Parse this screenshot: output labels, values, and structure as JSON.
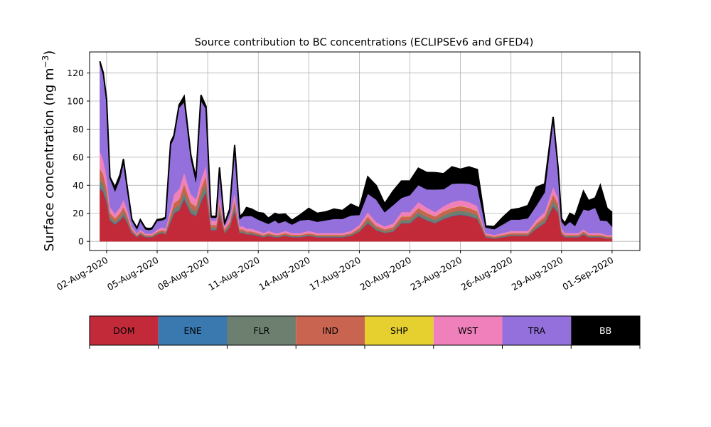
{
  "chart_data": {
    "type": "area",
    "stacked": true,
    "title": "Source contribution to BC concentrations (ECLIPSEv6 and GFED4)",
    "ylabel": "Surface concentration (ng m",
    "ylabel_unit_superscript": "−3",
    "ylabel_close": ")",
    "ylim": [
      -6.5,
      135
    ],
    "y_ticks": [
      0,
      20,
      40,
      60,
      80,
      100,
      120
    ],
    "x_ticks": [
      "02-Aug-2020",
      "05-Aug-2020",
      "08-Aug-2020",
      "11-Aug-2020",
      "14-Aug-2020",
      "17-Aug-2020",
      "20-Aug-2020",
      "23-Aug-2020",
      "26-Aug-2020",
      "29-Aug-2020",
      "01-Sep-2020"
    ],
    "x_tick_days": [
      2,
      5,
      8,
      11,
      14,
      17,
      20,
      23,
      26,
      29,
      32
    ],
    "xlim_days": [
      0.99,
      33.65
    ],
    "grid": true,
    "x": [
      1.6,
      1.8,
      2.0,
      2.2,
      2.5,
      2.8,
      3.0,
      3.2,
      3.5,
      3.8,
      4.0,
      4.3,
      4.5,
      4.7,
      5.0,
      5.3,
      5.5,
      5.8,
      6.0,
      6.3,
      6.6,
      7.0,
      7.3,
      7.6,
      7.9,
      8.2,
      8.5,
      8.7,
      9.0,
      9.3,
      9.6,
      9.9,
      10.1,
      10.3,
      10.6,
      11.0,
      11.3,
      11.6,
      12.0,
      12.2,
      12.6,
      13.0,
      13.5,
      14.0,
      14.5,
      15.0,
      15.5,
      16.0,
      16.5,
      17.0,
      17.5,
      18.0,
      18.5,
      19.0,
      19.5,
      20.0,
      20.5,
      21.0,
      21.5,
      22.0,
      22.5,
      23.0,
      23.5,
      24.0,
      24.5,
      25.0,
      25.5,
      26.0,
      26.5,
      27.0,
      27.5,
      28.0,
      28.5,
      28.8,
      29.0,
      29.2,
      29.5,
      29.8,
      30.0,
      30.3,
      30.6,
      31.0,
      31.3,
      31.7,
      32.0
    ],
    "series": [
      {
        "name": "DOM",
        "color": "#c22a3a",
        "values": [
          38,
          35,
          28,
          15,
          12,
          15,
          18,
          14,
          6,
          3,
          5,
          3,
          3,
          3,
          5,
          6,
          5,
          14,
          20,
          22,
          30,
          20,
          18,
          28,
          35,
          8,
          8,
          20,
          6,
          10,
          22,
          6,
          6,
          5,
          5,
          4,
          3,
          4,
          3,
          3,
          4,
          3,
          3,
          4,
          3,
          3,
          3,
          3,
          4,
          7,
          13,
          8,
          6,
          7,
          13,
          13,
          18,
          15,
          13,
          16,
          18,
          19,
          18,
          16,
          3,
          2,
          3,
          4,
          4,
          4,
          9,
          13,
          25,
          20,
          5,
          3,
          3,
          3,
          3,
          5,
          3,
          3,
          3,
          2,
          2
        ]
      },
      {
        "name": "ENE",
        "color": "#3a78b0",
        "values": [
          1,
          1,
          1,
          0.5,
          0.5,
          0.5,
          0.5,
          0.5,
          0.2,
          0.2,
          0.2,
          0.2,
          0.2,
          0.2,
          0.2,
          0.2,
          0.2,
          0.5,
          0.5,
          0.5,
          1,
          0.5,
          0.5,
          1,
          1,
          0.3,
          0.3,
          0.5,
          0.2,
          0.3,
          0.5,
          0.2,
          0.2,
          0.2,
          0.2,
          0.2,
          0.2,
          0.2,
          0.2,
          0.2,
          0.2,
          0.2,
          0.2,
          0.2,
          0.2,
          0.2,
          0.2,
          0.2,
          0.2,
          0.2,
          0.3,
          0.2,
          0.2,
          0.2,
          0.3,
          0.3,
          0.4,
          0.4,
          0.3,
          0.4,
          0.4,
          0.4,
          0.4,
          0.4,
          0.2,
          0.2,
          0.2,
          0.2,
          0.2,
          0.2,
          0.3,
          0.3,
          0.5,
          0.4,
          0.2,
          0.2,
          0.2,
          0.2,
          0.2,
          0.2,
          0.2,
          0.2,
          0.2,
          0.2,
          0.2
        ]
      },
      {
        "name": "FLR",
        "color": "#6d8070",
        "values": [
          5,
          5,
          4,
          2,
          1.5,
          2,
          2.5,
          2,
          1,
          0.5,
          0.7,
          0.5,
          0.5,
          0.5,
          0.7,
          0.8,
          0.8,
          2,
          3,
          3,
          4,
          3,
          3,
          4,
          5,
          1.5,
          1.5,
          3,
          1,
          1.5,
          3,
          1,
          1,
          0.8,
          0.8,
          0.7,
          0.6,
          0.7,
          0.6,
          0.6,
          0.7,
          0.6,
          0.6,
          0.7,
          0.6,
          0.6,
          0.6,
          0.6,
          0.7,
          1,
          2,
          1.2,
          1,
          1.2,
          2,
          2,
          2.5,
          2.2,
          2,
          2.3,
          2.5,
          2.6,
          2.5,
          2.3,
          0.6,
          0.5,
          0.6,
          0.7,
          0.7,
          0.7,
          1.5,
          2,
          3.5,
          3,
          1,
          0.6,
          0.6,
          0.6,
          0.6,
          0.8,
          0.6,
          0.6,
          0.6,
          0.5,
          0.5
        ]
      },
      {
        "name": "IND",
        "color": "#c86450",
        "values": [
          8,
          7,
          5,
          3,
          2.5,
          3,
          3.5,
          3,
          1.5,
          0.8,
          1,
          0.8,
          0.8,
          0.8,
          1,
          1.2,
          1.2,
          3,
          4,
          4.5,
          6,
          4,
          3.5,
          5,
          6,
          2,
          2,
          4,
          1.5,
          2,
          4,
          1.5,
          1.5,
          1.2,
          1.2,
          1,
          0.9,
          1,
          0.9,
          0.9,
          1,
          0.9,
          0.9,
          1,
          0.9,
          0.9,
          0.9,
          0.9,
          1,
          1.5,
          2.5,
          1.8,
          1.5,
          1.8,
          2.5,
          2.5,
          3,
          2.8,
          2.5,
          2.8,
          3,
          3.2,
          3,
          2.8,
          0.9,
          0.8,
          0.9,
          1,
          1,
          1,
          2,
          2.5,
          4.5,
          3.5,
          1.2,
          0.9,
          0.9,
          0.9,
          0.9,
          1.2,
          0.9,
          0.9,
          0.9,
          0.8,
          0.8
        ]
      },
      {
        "name": "SHP",
        "color": "#e6d030",
        "values": [
          0.3,
          0.3,
          0.3,
          0.2,
          0.2,
          0.2,
          0.2,
          0.2,
          0.1,
          0.1,
          0.1,
          0.1,
          0.1,
          0.1,
          0.1,
          0.1,
          0.1,
          0.2,
          0.2,
          0.2,
          0.3,
          0.2,
          0.2,
          0.3,
          0.3,
          0.1,
          0.1,
          0.2,
          0.1,
          0.1,
          0.2,
          0.1,
          0.1,
          0.1,
          0.1,
          0.1,
          0.1,
          0.1,
          0.1,
          0.1,
          0.1,
          0.1,
          0.1,
          0.1,
          0.1,
          0.1,
          0.1,
          0.1,
          0.1,
          0.1,
          0.2,
          0.1,
          0.1,
          0.1,
          0.2,
          0.2,
          0.2,
          0.2,
          0.2,
          0.2,
          0.2,
          0.2,
          0.2,
          0.2,
          0.1,
          0.1,
          0.1,
          0.1,
          0.1,
          0.1,
          0.2,
          0.2,
          0.3,
          0.2,
          0.1,
          0.1,
          0.1,
          0.1,
          0.1,
          0.1,
          0.1,
          0.1,
          0.1,
          0.1,
          0.1
        ]
      },
      {
        "name": "WST",
        "color": "#f080bc",
        "values": [
          12,
          10,
          8,
          4,
          3,
          4,
          5,
          4,
          2,
          1,
          1.5,
          1,
          1,
          1,
          1.5,
          1.8,
          1.8,
          4,
          6,
          7,
          8,
          6,
          5,
          6,
          7,
          3,
          3,
          5,
          2,
          3,
          5,
          2,
          2,
          1.8,
          1.8,
          1.5,
          1.2,
          1.5,
          1.2,
          1.2,
          1.5,
          1.2,
          1.2,
          1.5,
          1.2,
          1.2,
          1.2,
          1.2,
          1.5,
          2,
          3,
          2.5,
          2,
          2.5,
          3,
          3,
          4,
          3.5,
          3,
          3.5,
          4,
          4,
          4,
          3.5,
          1.2,
          1,
          1.2,
          1.5,
          1.5,
          1.5,
          2.5,
          3,
          5,
          4,
          1.8,
          1.2,
          1.2,
          1.2,
          1.2,
          1.5,
          1.2,
          1.2,
          1.2,
          1,
          1
        ]
      },
      {
        "name": "TRA",
        "color": "#9370db",
        "values": [
          62,
          60,
          52,
          20,
          16,
          20,
          26,
          14,
          4,
          3,
          6,
          3,
          2.5,
          3,
          6,
          5,
          7,
          45,
          40,
          58,
          50,
          25,
          12,
          56,
          40,
          2,
          2,
          18,
          1,
          4,
          30,
          5,
          7,
          9,
          9,
          8,
          8,
          5,
          9,
          7,
          7,
          6,
          9,
          8,
          8,
          9,
          10,
          10,
          11,
          7,
          13,
          16,
          10,
          13,
          10,
          12,
          12,
          13,
          16,
          12,
          13,
          12,
          13,
          14,
          4,
          4,
          6,
          8,
          8,
          9,
          10,
          14,
          47,
          18,
          5,
          5,
          8,
          5,
          10,
          14,
          16,
          18,
          9,
          10,
          6
        ]
      },
      {
        "name": "BB",
        "color": "#000000",
        "values": [
          2,
          2,
          3,
          1,
          3,
          3,
          3,
          3,
          1,
          1,
          1,
          1,
          1,
          1,
          1,
          1,
          1,
          2,
          2,
          2,
          4,
          3,
          3,
          4,
          2,
          1,
          1,
          2,
          1,
          2,
          4,
          2,
          2,
          6,
          5,
          5,
          6,
          4,
          5,
          6,
          5,
          3,
          4,
          8,
          6,
          6,
          7,
          6,
          8,
          5,
          12,
          10,
          6,
          10,
          12,
          10,
          12,
          12,
          12,
          11,
          12,
          10,
          12,
          12,
          1,
          2,
          5,
          7,
          8,
          9,
          13,
          6,
          3,
          3,
          2,
          2,
          6,
          7,
          9,
          13,
          7,
          7,
          25,
          9,
          10
        ]
      }
    ],
    "legend": {
      "placement": "below",
      "labels": [
        "DOM",
        "ENE",
        "FLR",
        "IND",
        "SHP",
        "WST",
        "TRA",
        "BB"
      ],
      "label_colors": [
        "#000000",
        "#000000",
        "#000000",
        "#000000",
        "#000000",
        "#000000",
        "#000000",
        "#ffffff"
      ]
    }
  }
}
